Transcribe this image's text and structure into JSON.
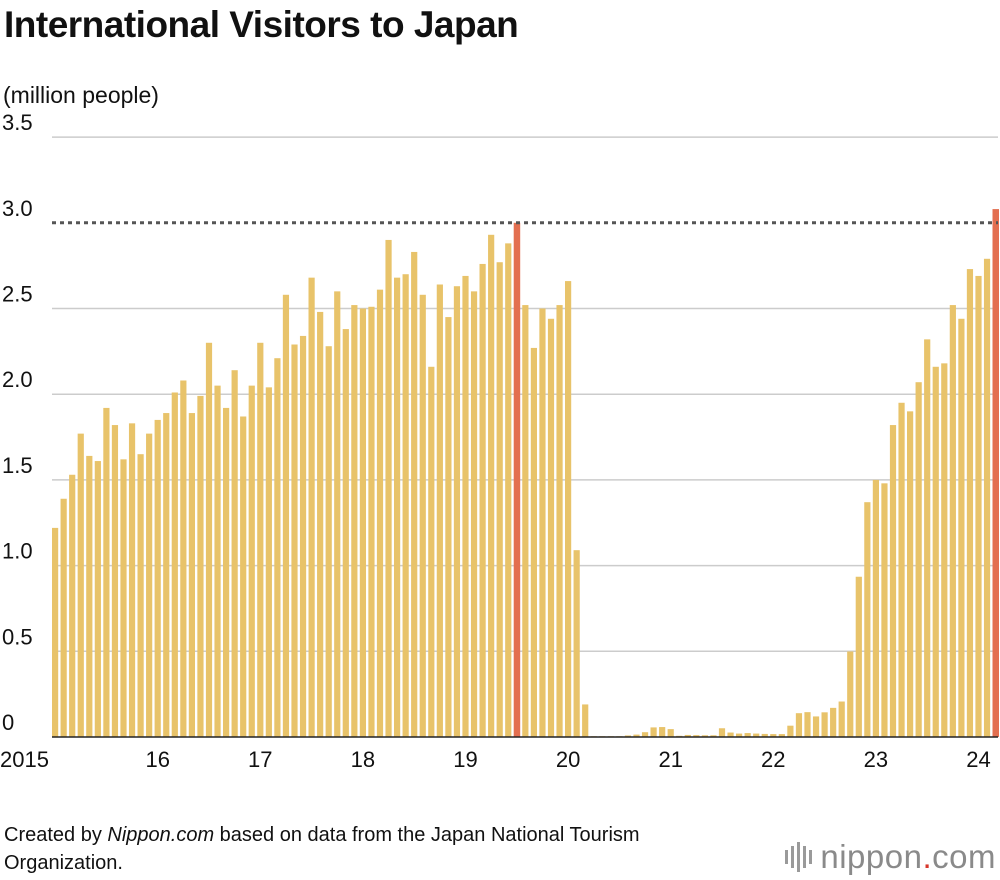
{
  "title": "International Visitors to Japan",
  "unit_label": "(million people)",
  "footer": {
    "prefix": "Created by ",
    "source_name": "Nippon.com",
    "suffix": " based on data from the Japan National Tourism Organization."
  },
  "logo": {
    "name": "nippon",
    "dot": ".",
    "tld": "com"
  },
  "colors": {
    "bar": "#e8c36a",
    "highlight": "#e36f50",
    "grid": "#cccccc",
    "reference": "#555555"
  },
  "chart_data": {
    "type": "bar",
    "title": "International Visitors to Japan",
    "ylabel": "(million people)",
    "ylim": [
      0,
      3.5
    ],
    "yticks": [
      "0",
      "0.5",
      "1.0",
      "1.5",
      "2.0",
      "2.5",
      "3.0",
      "3.5"
    ],
    "reference_line": 3.0,
    "xtick_labels": [
      "2015",
      "16",
      "17",
      "18",
      "19",
      "20",
      "21",
      "22",
      "23",
      "24"
    ],
    "grid": true,
    "values": [
      1.22,
      1.39,
      1.53,
      1.77,
      1.64,
      1.61,
      1.92,
      1.82,
      1.62,
      1.83,
      1.65,
      1.77,
      1.85,
      1.89,
      2.01,
      2.08,
      1.89,
      1.99,
      2.3,
      2.05,
      1.92,
      2.14,
      1.87,
      2.05,
      2.3,
      2.04,
      2.21,
      2.58,
      2.29,
      2.34,
      2.68,
      2.48,
      2.28,
      2.6,
      2.38,
      2.52,
      2.5,
      2.51,
      2.61,
      2.9,
      2.68,
      2.7,
      2.83,
      2.58,
      2.16,
      2.64,
      2.45,
      2.63,
      2.69,
      2.6,
      2.76,
      2.93,
      2.77,
      2.88,
      3.0,
      2.52,
      2.27,
      2.5,
      2.44,
      2.52,
      2.66,
      1.09,
      0.19,
      0.003,
      0.002,
      0.003,
      0.004,
      0.009,
      0.014,
      0.028,
      0.056,
      0.058,
      0.046,
      0.007,
      0.012,
      0.011,
      0.01,
      0.01,
      0.051,
      0.026,
      0.02,
      0.023,
      0.02,
      0.018,
      0.017,
      0.017,
      0.066,
      0.139,
      0.145,
      0.12,
      0.144,
      0.17,
      0.207,
      0.499,
      0.935,
      1.37,
      1.5,
      1.48,
      1.82,
      1.95,
      1.9,
      2.07,
      2.32,
      2.16,
      2.18,
      2.52,
      2.44,
      2.73,
      2.69,
      2.79,
      3.08
    ],
    "highlight_bars": [
      {
        "index": 54,
        "month": "2019-07",
        "value": 3.0
      },
      {
        "index": 110,
        "month": "2024-03",
        "value": 3.08
      }
    ]
  }
}
